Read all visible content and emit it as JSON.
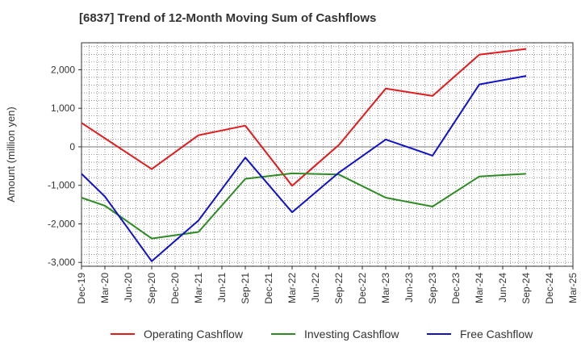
{
  "chart_data": {
    "type": "line",
    "title": "[6837]  Trend of 12-Month Moving Sum of Cashflows",
    "ylabel": "Amount (million yen)",
    "xlabel": "",
    "ylim": [
      -3100,
      2700
    ],
    "yticks": [
      2000,
      1000,
      0,
      -1000,
      -2000,
      -3000
    ],
    "ytick_labels": [
      "2,000",
      "1,000",
      "0",
      "-1,000",
      "-2,000",
      "-3,000"
    ],
    "categories": [
      "Dec-19",
      "Mar-20",
      "Jun-20",
      "Sep-20",
      "Dec-20",
      "Mar-21",
      "Jun-21",
      "Sep-21",
      "Dec-21",
      "Mar-22",
      "Jun-22",
      "Sep-22",
      "Dec-22",
      "Mar-23",
      "Jun-23",
      "Sep-23",
      "Dec-23",
      "Mar-24",
      "Jun-24",
      "Sep-24",
      "Dec-24",
      "Mar-25"
    ],
    "grid": true,
    "legend_position": "bottom",
    "series": [
      {
        "name": "Operating Cashflow",
        "color": "#e41a1c",
        "points": [
          {
            "x": "Dec-19",
            "y": 620
          },
          {
            "x": "Sep-20",
            "y": -580
          },
          {
            "x": "Mar-21",
            "y": 300
          },
          {
            "x": "Sep-21",
            "y": 550
          },
          {
            "x": "Mar-22",
            "y": -1010
          },
          {
            "x": "Sep-22",
            "y": 50
          },
          {
            "x": "Mar-23",
            "y": 1510
          },
          {
            "x": "Sep-23",
            "y": 1320
          },
          {
            "x": "Mar-24",
            "y": 2390
          },
          {
            "x": "Sep-24",
            "y": 2540
          }
        ]
      },
      {
        "name": "Investing Cashflow",
        "color": "#2e8b24",
        "points": [
          {
            "x": "Dec-19",
            "y": -1320
          },
          {
            "x": "Mar-20",
            "y": -1530
          },
          {
            "x": "Sep-20",
            "y": -2380
          },
          {
            "x": "Mar-21",
            "y": -2210
          },
          {
            "x": "Sep-21",
            "y": -830
          },
          {
            "x": "Mar-22",
            "y": -690
          },
          {
            "x": "Sep-22",
            "y": -720
          },
          {
            "x": "Mar-23",
            "y": -1320
          },
          {
            "x": "Sep-23",
            "y": -1550
          },
          {
            "x": "Mar-24",
            "y": -770
          },
          {
            "x": "Sep-24",
            "y": -700
          }
        ]
      },
      {
        "name": "Free Cashflow",
        "color": "#1111cc",
        "points": [
          {
            "x": "Dec-19",
            "y": -700
          },
          {
            "x": "Mar-20",
            "y": -1290
          },
          {
            "x": "Sep-20",
            "y": -2970
          },
          {
            "x": "Mar-21",
            "y": -1910
          },
          {
            "x": "Sep-21",
            "y": -280
          },
          {
            "x": "Mar-22",
            "y": -1700
          },
          {
            "x": "Sep-22",
            "y": -670
          },
          {
            "x": "Mar-23",
            "y": 190
          },
          {
            "x": "Sep-23",
            "y": -230
          },
          {
            "x": "Mar-24",
            "y": 1620
          },
          {
            "x": "Sep-24",
            "y": 1840
          }
        ]
      }
    ]
  }
}
